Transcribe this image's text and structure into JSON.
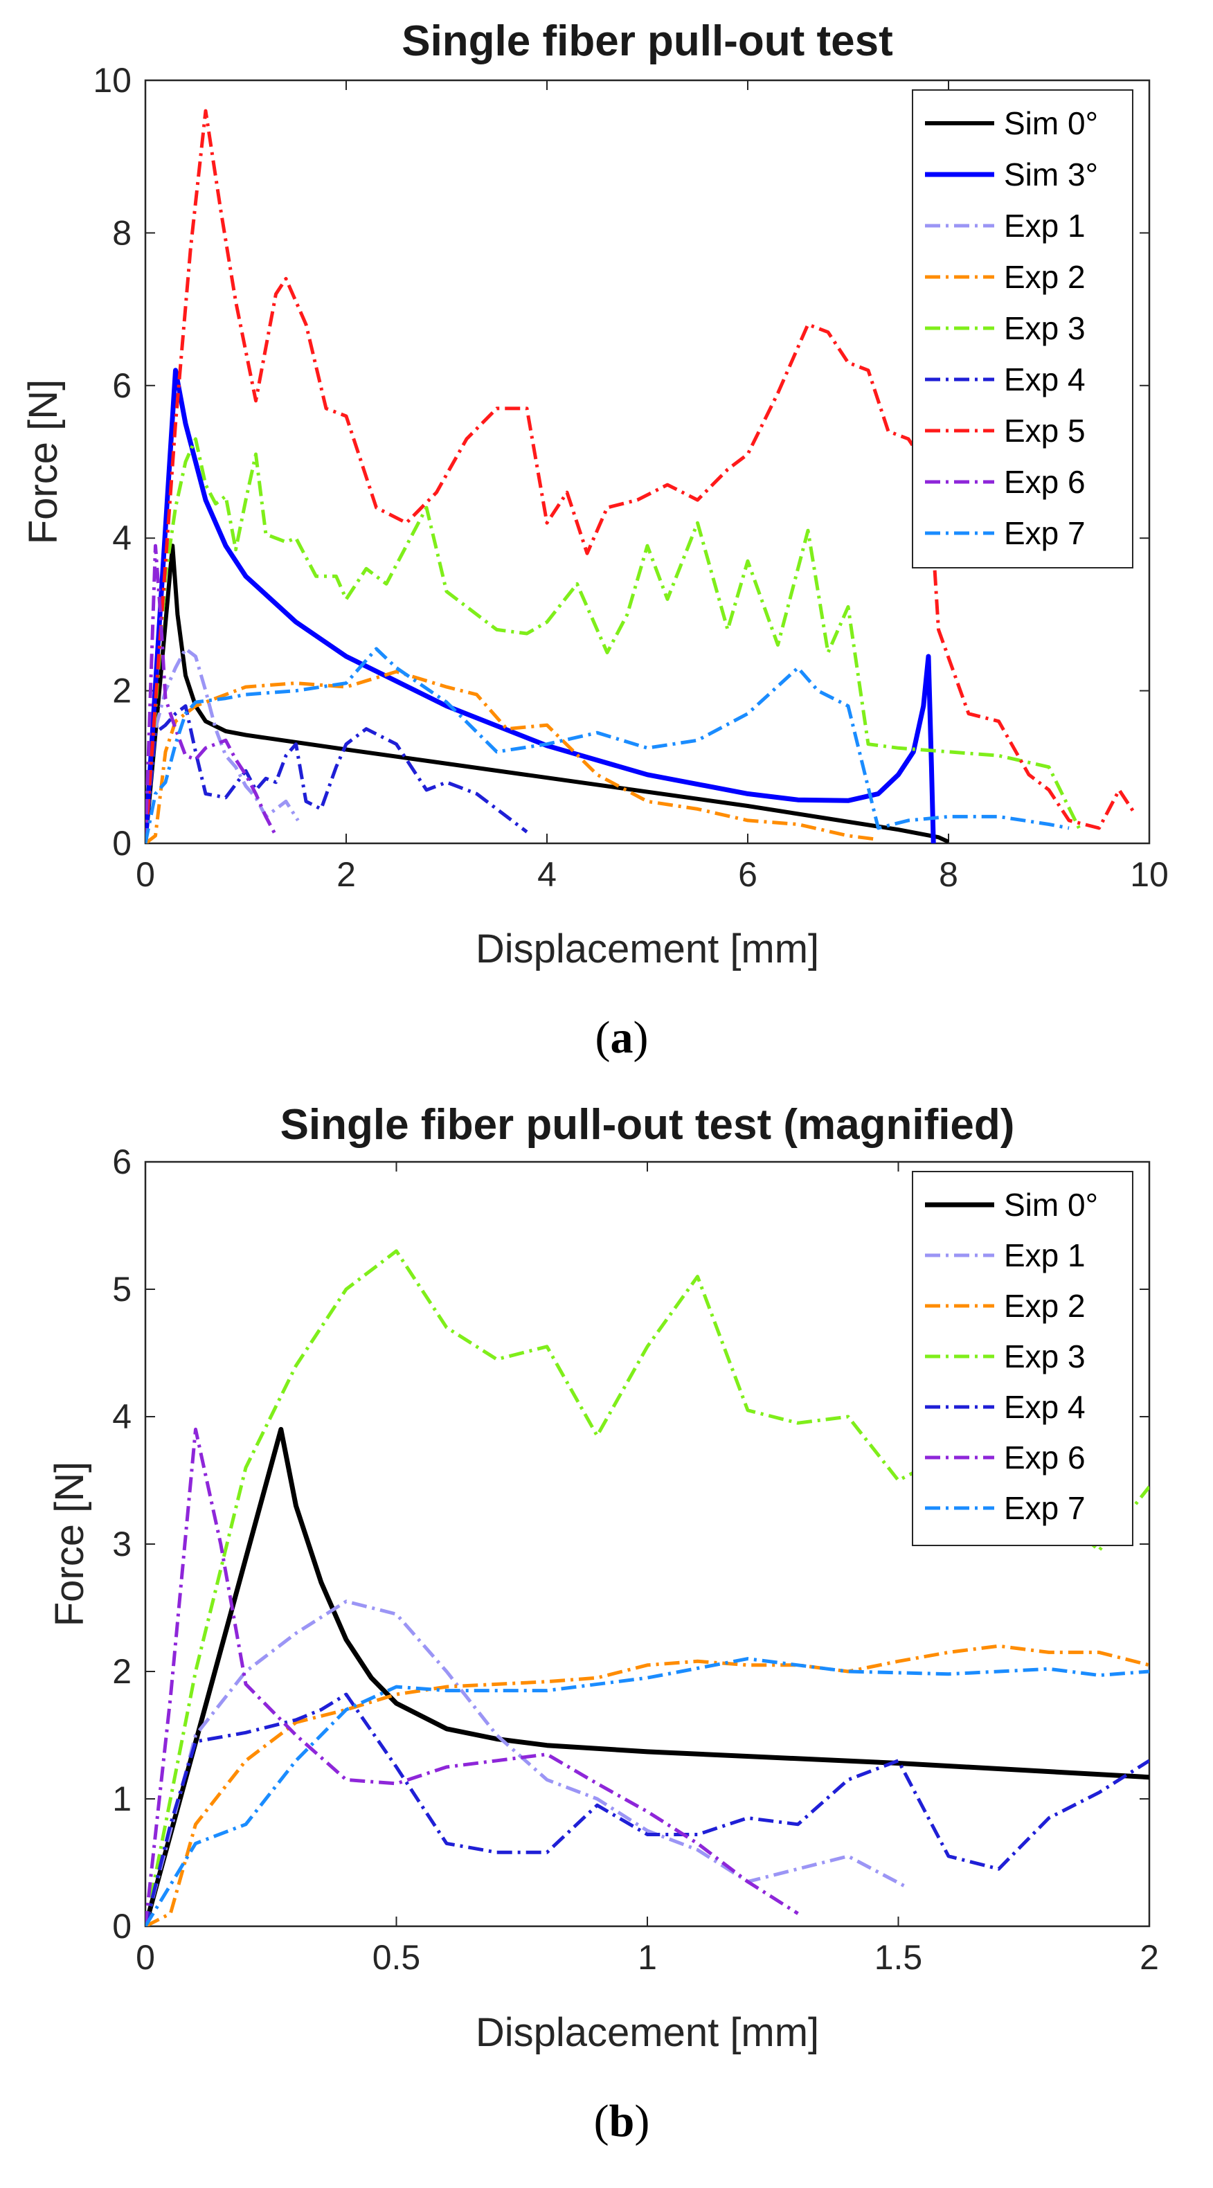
{
  "chart_data": [
    {
      "type": "line",
      "title": "Single fiber pull-out test",
      "xlabel": "Displacement [mm]",
      "ylabel": "Force [N]",
      "xlim": [
        0,
        10
      ],
      "ylim": [
        0,
        10
      ],
      "xticks": [
        0,
        2,
        4,
        6,
        8,
        10
      ],
      "yticks": [
        0,
        2,
        4,
        6,
        8,
        10
      ],
      "xtick_labels": [
        "0",
        "2",
        "4",
        "6",
        "8",
        "10"
      ],
      "ytick_labels": [
        "0",
        "2",
        "4",
        "6",
        "8",
        "10"
      ],
      "grid": false,
      "legend_position": "top-right",
      "caption_letter": "a",
      "series": [
        {
          "name": "Sim 0°",
          "color": "#000000",
          "style": "solid",
          "width": 3,
          "x": [
            0,
            0.27,
            0.32,
            0.4,
            0.5,
            0.6,
            0.8,
            1.0,
            2.0,
            4.0,
            6.0,
            7.5,
            7.9,
            8.0
          ],
          "y": [
            0,
            3.9,
            3.0,
            2.2,
            1.8,
            1.6,
            1.47,
            1.42,
            1.23,
            0.86,
            0.49,
            0.18,
            0.08,
            0.02
          ]
        },
        {
          "name": "Sim 3°",
          "color": "#0000ff",
          "style": "solid",
          "width": 3.5,
          "x": [
            0,
            0.3,
            0.4,
            0.6,
            0.8,
            1.0,
            1.5,
            2.0,
            3.0,
            4.0,
            5.0,
            6.0,
            6.5,
            7.0,
            7.3,
            7.5,
            7.65,
            7.75,
            7.8,
            7.83,
            7.85
          ],
          "y": [
            0,
            6.2,
            5.5,
            4.5,
            3.9,
            3.5,
            2.9,
            2.45,
            1.8,
            1.28,
            0.9,
            0.65,
            0.57,
            0.56,
            0.65,
            0.9,
            1.2,
            1.8,
            2.45,
            1.0,
            0
          ]
        },
        {
          "name": "Exp 1",
          "color": "#9b95f5",
          "style": "dashdot",
          "width": 2.5,
          "x": [
            0,
            0.1,
            0.2,
            0.3,
            0.4,
            0.5,
            0.6,
            0.7,
            0.8,
            0.9,
            1.0,
            1.1,
            1.2,
            1.3,
            1.4,
            1.52
          ],
          "y": [
            0,
            1.5,
            2.0,
            2.3,
            2.55,
            2.45,
            2.0,
            1.5,
            1.15,
            1.0,
            0.75,
            0.6,
            0.35,
            0.45,
            0.55,
            0.3
          ]
        },
        {
          "name": "Exp 2",
          "color": "#ff8c00",
          "style": "dashdot",
          "width": 2.5,
          "x": [
            0,
            0.1,
            0.2,
            0.3,
            0.4,
            0.5,
            1.0,
            1.5,
            2.0,
            2.5,
            3.0,
            3.3,
            3.6,
            4.0,
            4.5,
            5.0,
            5.5,
            6.0,
            6.5,
            7.0,
            7.3
          ],
          "y": [
            0,
            0.1,
            1.2,
            1.6,
            1.7,
            1.8,
            2.05,
            2.1,
            2.05,
            2.25,
            2.05,
            1.95,
            1.5,
            1.55,
            0.9,
            0.55,
            0.45,
            0.3,
            0.25,
            0.1,
            0.05
          ]
        },
        {
          "name": "Exp 3",
          "color": "#7fee1a",
          "style": "dashdot",
          "width": 2.5,
          "x": [
            0,
            0.2,
            0.3,
            0.4,
            0.5,
            0.6,
            0.7,
            0.8,
            0.9,
            1.0,
            1.1,
            1.2,
            1.4,
            1.5,
            1.7,
            1.9,
            2.0,
            2.2,
            2.4,
            2.6,
            2.8,
            3.0,
            3.5,
            3.8,
            4.0,
            4.3,
            4.6,
            4.8,
            5.0,
            5.2,
            5.5,
            5.8,
            6.0,
            6.3,
            6.6,
            6.8,
            7.0,
            7.2,
            7.5,
            8.0,
            8.5,
            9.0,
            9.3
          ],
          "y": [
            0,
            3.5,
            4.4,
            5.0,
            5.3,
            4.7,
            4.45,
            4.55,
            3.85,
            4.5,
            5.1,
            4.05,
            3.95,
            4.0,
            3.5,
            3.5,
            3.2,
            3.6,
            3.4,
            3.9,
            4.4,
            3.3,
            2.8,
            2.75,
            2.9,
            3.4,
            2.5,
            3.0,
            3.9,
            3.2,
            4.2,
            2.8,
            3.7,
            2.6,
            4.1,
            2.5,
            3.1,
            1.3,
            1.25,
            1.2,
            1.15,
            1.0,
            0.2
          ]
        },
        {
          "name": "Exp 4",
          "color": "#1f1fd6",
          "style": "dashdot",
          "width": 2.5,
          "x": [
            0,
            0.1,
            0.2,
            0.3,
            0.4,
            0.5,
            0.6,
            0.8,
            1.0,
            1.1,
            1.2,
            1.3,
            1.4,
            1.5,
            1.6,
            1.75,
            1.9,
            2.0,
            2.2,
            2.5,
            2.8,
            3.0,
            3.3,
            3.6,
            3.8
          ],
          "y": [
            0,
            1.45,
            1.55,
            1.7,
            1.8,
            1.2,
            0.65,
            0.6,
            0.95,
            0.7,
            0.85,
            0.8,
            1.15,
            1.3,
            0.55,
            0.45,
            1.0,
            1.3,
            1.5,
            1.3,
            0.7,
            0.8,
            0.65,
            0.35,
            0.15
          ]
        },
        {
          "name": "Exp 5",
          "color": "#ff1a1a",
          "style": "dashdot",
          "width": 2.5,
          "x": [
            0,
            0.3,
            0.45,
            0.6,
            0.75,
            0.9,
            1.1,
            1.3,
            1.4,
            1.6,
            1.8,
            2.0,
            2.3,
            2.6,
            2.9,
            3.2,
            3.5,
            3.8,
            4.0,
            4.2,
            4.4,
            4.6,
            4.9,
            5.2,
            5.5,
            5.8,
            6.0,
            6.3,
            6.6,
            6.8,
            7.0,
            7.2,
            7.4,
            7.6,
            7.8,
            7.9,
            8.2,
            8.5,
            8.8,
            9.0,
            9.2,
            9.5,
            9.7,
            9.85
          ],
          "y": [
            0,
            5.5,
            7.8,
            9.6,
            8.3,
            7.1,
            5.8,
            7.2,
            7.4,
            6.8,
            5.7,
            5.6,
            4.4,
            4.2,
            4.6,
            5.3,
            5.7,
            5.7,
            4.2,
            4.6,
            3.8,
            4.4,
            4.5,
            4.7,
            4.5,
            4.9,
            5.1,
            5.9,
            6.8,
            6.7,
            6.3,
            6.2,
            5.4,
            5.3,
            4.9,
            2.8,
            1.7,
            1.6,
            0.9,
            0.7,
            0.3,
            0.2,
            0.7,
            0.4
          ]
        },
        {
          "name": "Exp 6",
          "color": "#8e26d9",
          "style": "dashdot",
          "width": 2.5,
          "x": [
            0,
            0.1,
            0.15,
            0.2,
            0.3,
            0.4,
            0.5,
            0.6,
            0.7,
            0.8,
            0.9,
            1.0,
            1.1,
            1.2,
            1.3
          ],
          "y": [
            0,
            3.9,
            3.0,
            1.9,
            1.5,
            1.15,
            1.1,
            1.25,
            1.3,
            1.35,
            1.1,
            0.9,
            0.65,
            0.35,
            0.1
          ]
        },
        {
          "name": "Exp 7",
          "color": "#1a8cff",
          "style": "dashdot",
          "width": 2.5,
          "x": [
            0,
            0.1,
            0.2,
            0.3,
            0.4,
            0.5,
            0.8,
            1.0,
            1.5,
            2.0,
            2.3,
            2.5,
            3.0,
            3.5,
            4.0,
            4.5,
            5.0,
            5.5,
            6.0,
            6.5,
            6.7,
            7.0,
            7.3,
            7.6,
            8.0,
            8.5,
            9.0,
            9.2
          ],
          "y": [
            0,
            0.65,
            0.8,
            1.3,
            1.7,
            1.85,
            1.9,
            1.95,
            2.0,
            2.1,
            2.55,
            2.3,
            1.85,
            1.2,
            1.3,
            1.45,
            1.25,
            1.35,
            1.7,
            2.3,
            2.0,
            1.8,
            0.2,
            0.3,
            0.35,
            0.35,
            0.25,
            0.2
          ]
        }
      ]
    },
    {
      "type": "line",
      "title": "Single fiber pull-out test (magnified)",
      "xlabel": "Displacement [mm]",
      "ylabel": "Force [N]",
      "xlim": [
        0,
        2
      ],
      "ylim": [
        0,
        6
      ],
      "xticks": [
        0,
        0.5,
        1,
        1.5,
        2
      ],
      "yticks": [
        0,
        1,
        2,
        3,
        4,
        5,
        6
      ],
      "xtick_labels": [
        "0",
        "0.5",
        "1",
        "1.5",
        "2"
      ],
      "ytick_labels": [
        "0",
        "1",
        "2",
        "3",
        "4",
        "5",
        "6"
      ],
      "grid": false,
      "legend_position": "top-right",
      "caption_letter": "b",
      "series": [
        {
          "name": "Sim 0°",
          "color": "#000000",
          "style": "solid",
          "width": 3.5,
          "x": [
            0,
            0.27,
            0.3,
            0.35,
            0.4,
            0.45,
            0.5,
            0.6,
            0.7,
            0.8,
            1.0,
            1.5,
            2.0
          ],
          "y": [
            0,
            3.9,
            3.3,
            2.7,
            2.25,
            1.95,
            1.75,
            1.55,
            1.47,
            1.42,
            1.37,
            1.28,
            1.17
          ]
        },
        {
          "name": "Exp 1",
          "color": "#9b95f5",
          "style": "dashdot",
          "width": 2.5,
          "x": [
            0,
            0.1,
            0.2,
            0.3,
            0.4,
            0.5,
            0.6,
            0.7,
            0.8,
            0.9,
            1.0,
            1.1,
            1.2,
            1.3,
            1.4,
            1.52
          ],
          "y": [
            0,
            1.5,
            2.0,
            2.3,
            2.55,
            2.45,
            2.0,
            1.5,
            1.15,
            1.0,
            0.75,
            0.6,
            0.35,
            0.45,
            0.55,
            0.3
          ]
        },
        {
          "name": "Exp 2",
          "color": "#ff8c00",
          "style": "dashdot",
          "width": 2.5,
          "x": [
            0,
            0.05,
            0.1,
            0.2,
            0.3,
            0.4,
            0.5,
            0.6,
            0.7,
            0.8,
            0.9,
            1.0,
            1.1,
            1.2,
            1.3,
            1.4,
            1.5,
            1.6,
            1.7,
            1.8,
            1.9,
            2.0
          ],
          "y": [
            0,
            0.1,
            0.8,
            1.3,
            1.6,
            1.7,
            1.82,
            1.88,
            1.9,
            1.92,
            1.95,
            2.05,
            2.08,
            2.05,
            2.05,
            2.0,
            2.08,
            2.15,
            2.2,
            2.15,
            2.15,
            2.05
          ]
        },
        {
          "name": "Exp 3",
          "color": "#7fee1a",
          "style": "dashdot",
          "width": 2.5,
          "x": [
            0,
            0.1,
            0.2,
            0.3,
            0.4,
            0.5,
            0.6,
            0.7,
            0.8,
            0.9,
            1.0,
            1.1,
            1.2,
            1.3,
            1.4,
            1.5,
            1.6,
            1.7,
            1.8,
            1.9,
            2.0
          ],
          "y": [
            0,
            2.0,
            3.6,
            4.4,
            5.0,
            5.3,
            4.7,
            4.45,
            4.55,
            3.85,
            4.55,
            5.1,
            4.05,
            3.95,
            4.0,
            3.5,
            3.7,
            3.5,
            3.3,
            2.95,
            3.45
          ]
        },
        {
          "name": "Exp 4",
          "color": "#1f1fd6",
          "style": "dashdot",
          "width": 2.5,
          "x": [
            0,
            0.05,
            0.1,
            0.2,
            0.3,
            0.35,
            0.4,
            0.5,
            0.6,
            0.7,
            0.8,
            0.9,
            1.0,
            1.1,
            1.2,
            1.3,
            1.4,
            1.5,
            1.6,
            1.7,
            1.8,
            1.9,
            2.0
          ],
          "y": [
            0,
            0.8,
            1.45,
            1.52,
            1.62,
            1.7,
            1.82,
            1.25,
            0.65,
            0.58,
            0.58,
            0.95,
            0.72,
            0.72,
            0.85,
            0.8,
            1.15,
            1.3,
            0.55,
            0.45,
            0.85,
            1.05,
            1.3
          ]
        },
        {
          "name": "Exp 6",
          "color": "#8e26d9",
          "style": "dashdot",
          "width": 2.5,
          "x": [
            0,
            0.05,
            0.1,
            0.15,
            0.2,
            0.3,
            0.4,
            0.5,
            0.6,
            0.7,
            0.8,
            0.9,
            1.0,
            1.1,
            1.2,
            1.3
          ],
          "y": [
            0,
            1.8,
            3.9,
            3.0,
            1.9,
            1.5,
            1.15,
            1.12,
            1.25,
            1.3,
            1.35,
            1.12,
            0.9,
            0.65,
            0.35,
            0.1
          ]
        },
        {
          "name": "Exp 7",
          "color": "#1a8cff",
          "style": "dashdot",
          "width": 2.5,
          "x": [
            0,
            0.1,
            0.2,
            0.3,
            0.4,
            0.5,
            0.6,
            0.8,
            1.0,
            1.2,
            1.4,
            1.6,
            1.8,
            1.9,
            2.0
          ],
          "y": [
            0,
            0.65,
            0.8,
            1.3,
            1.7,
            1.88,
            1.85,
            1.85,
            1.95,
            2.1,
            2.0,
            1.98,
            2.02,
            1.97,
            2.0
          ]
        }
      ]
    }
  ]
}
